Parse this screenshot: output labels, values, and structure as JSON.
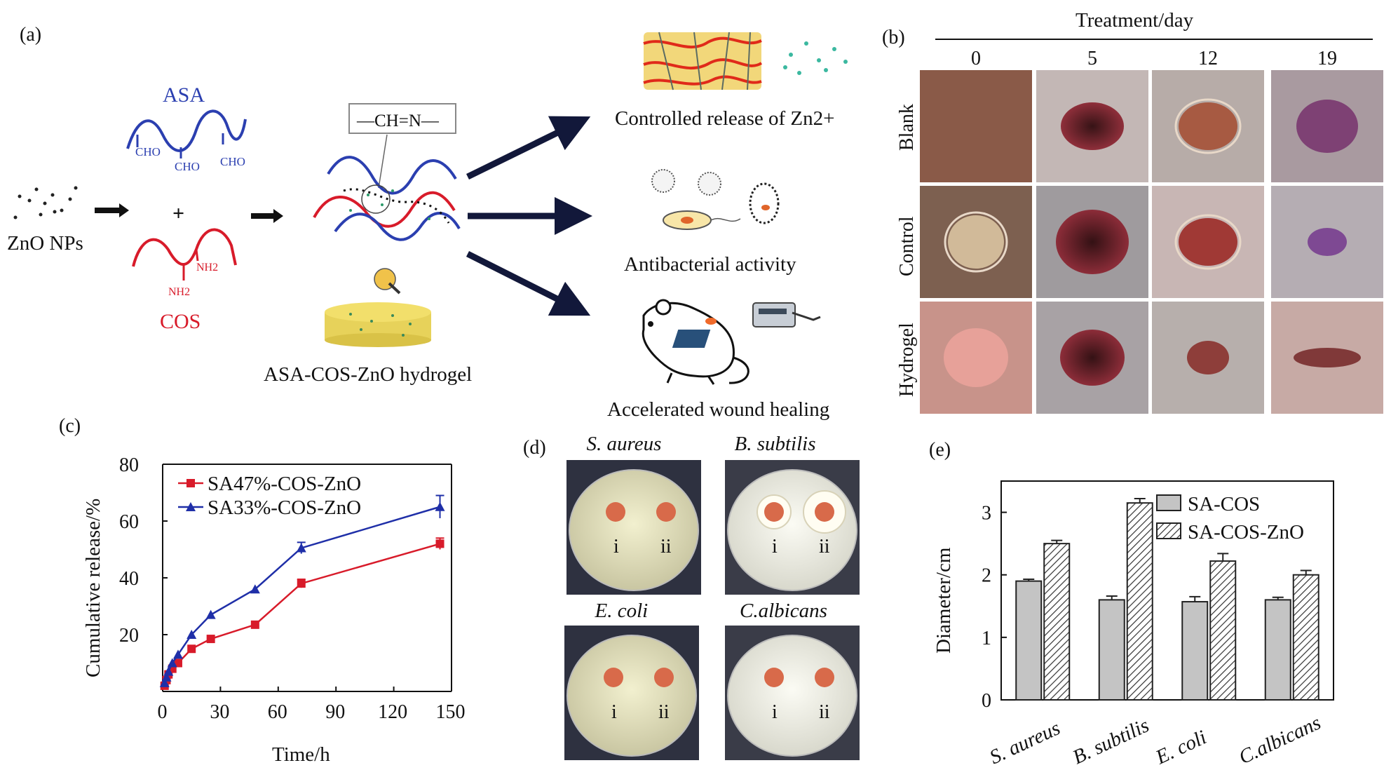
{
  "panel_a": {
    "label": "(a)",
    "zno_label": "ZnO NPs",
    "asa_label": "ASA",
    "cho_labels": [
      "CHO",
      "CHO",
      "CHO"
    ],
    "plus": "+",
    "cos_label": "COS",
    "nh2_labels": [
      "NH2",
      "NH2"
    ],
    "imine_label": "—CH=N—",
    "hydrogel_label": "ASA-COS-ZnO hydrogel",
    "outcomes": [
      "Controlled release of Zn2+",
      "Antibacterial activity",
      "Accelerated wound healing"
    ],
    "colors": {
      "asa": "#2b3fb0",
      "cos": "#d81b2a",
      "hydrogel": "#f2df6b"
    }
  },
  "panel_b": {
    "label": "(b)",
    "header": "Treatment/day",
    "days": [
      "0",
      "5",
      "12",
      "19"
    ],
    "rows": [
      "Blank",
      "Control",
      "Hydrogel"
    ]
  },
  "panel_c": {
    "label": "(c)",
    "chart_data": {
      "type": "line",
      "xlabel": "Time/h",
      "ylabel": "Cumulative release/%",
      "xlim": [
        0,
        150
      ],
      "ylim": [
        0,
        80
      ],
      "xticks": [
        "0",
        "30",
        "60",
        "90",
        "120",
        "150"
      ],
      "yticks": [
        "20",
        "40",
        "60",
        "80"
      ],
      "series": [
        {
          "name": "SA47%-COS-ZnO",
          "color": "#d81b2a",
          "marker": "square",
          "x": [
            1,
            2,
            3,
            5,
            8,
            15,
            25,
            48,
            72,
            144
          ],
          "y": [
            2,
            4,
            6,
            8,
            10,
            15,
            18.5,
            23.5,
            38,
            52
          ],
          "err": [
            0.5,
            0.5,
            0.5,
            0.5,
            0.5,
            0.8,
            0.8,
            0.8,
            1.5,
            2
          ]
        },
        {
          "name": "SA33%-COS-ZnO",
          "color": "#1f2fa8",
          "marker": "triangle",
          "x": [
            1,
            2,
            3,
            5,
            8,
            15,
            25,
            48,
            72,
            144
          ],
          "y": [
            3,
            5,
            7,
            10,
            13,
            20,
            27,
            36,
            50.5,
            65
          ],
          "err": [
            0.5,
            0.5,
            0.5,
            0.5,
            0.5,
            0.8,
            0.8,
            0.8,
            2,
            4
          ]
        }
      ]
    }
  },
  "panel_d": {
    "label": "(d)",
    "plates": [
      {
        "title": "S. aureus",
        "marks": [
          "i",
          "ii"
        ]
      },
      {
        "title": "B. subtilis",
        "marks": [
          "i",
          "ii"
        ]
      },
      {
        "title": "E. coli",
        "marks": [
          "i",
          "ii"
        ]
      },
      {
        "title": "C.albicans",
        "marks": [
          "i",
          "ii"
        ]
      }
    ]
  },
  "panel_e": {
    "label": "(e)",
    "chart_data": {
      "type": "bar",
      "ylabel": "Diameter/cm",
      "ylim": [
        0,
        3.5
      ],
      "yticks": [
        "0",
        "1",
        "2",
        "3"
      ],
      "categories": [
        "S. aureus",
        "B. subtilis",
        "E. coli",
        "C.albicans"
      ],
      "series": [
        {
          "name": "SA-COS",
          "pattern": "solid",
          "values": [
            1.9,
            1.6,
            1.57,
            1.6
          ],
          "err": [
            0.03,
            0.06,
            0.08,
            0.04
          ]
        },
        {
          "name": "SA-COS-ZnO",
          "pattern": "hatched",
          "values": [
            2.5,
            3.15,
            2.22,
            2.0
          ],
          "err": [
            0.05,
            0.07,
            0.12,
            0.07
          ]
        }
      ]
    }
  }
}
